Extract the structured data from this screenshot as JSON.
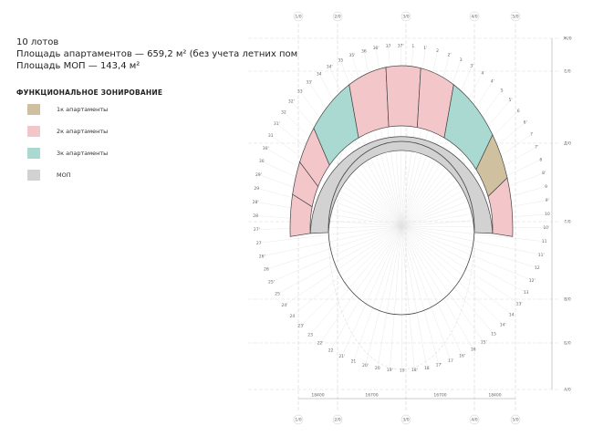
{
  "header": {
    "lots": "10 лотов",
    "apartments_area": "Площадь апартаментов — 659,2 м² (без учета летних пом",
    "common_area": "Площадь МОП — 143,4 м²"
  },
  "legend": {
    "title": "ФУНКЦИОНАЛЬНОЕ ЗОНИРОВАНИЕ",
    "items": [
      {
        "label": "1к апартаменты",
        "color": "#cfc19f"
      },
      {
        "label": "2к апартаменты",
        "color": "#f3c6ca"
      },
      {
        "label": "3к апартаменты",
        "color": "#a9d9d1"
      },
      {
        "label": "МОП",
        "color": "#d2d2d2"
      }
    ]
  },
  "plan": {
    "column_axes": [
      "1/0",
      "2/0",
      "3/0",
      "4/0",
      "5/0"
    ],
    "row_axes": [
      "Ж/0",
      "Е/0",
      "Д/0",
      "Г/0",
      "В/0",
      "Б/0",
      "А/0"
    ],
    "dimensions": [
      "18400",
      "16700",
      "16700",
      "18400"
    ],
    "radial_labels": [
      "1",
      "1'",
      "2",
      "2'",
      "3",
      "3'",
      "4",
      "4'",
      "5",
      "5'",
      "6",
      "6'",
      "7",
      "7'",
      "8",
      "8'",
      "9",
      "9'",
      "10",
      "10'",
      "11",
      "11'",
      "12",
      "12'",
      "13",
      "13'",
      "14",
      "14'",
      "15",
      "15'",
      "16",
      "16'",
      "17",
      "17'",
      "18",
      "18'",
      "19",
      "19'",
      "20",
      "20'",
      "21",
      "21'",
      "22",
      "22'",
      "23",
      "23'",
      "24",
      "24'",
      "25",
      "25'",
      "26",
      "26'",
      "27",
      "27'",
      "28",
      "28'",
      "29",
      "29'",
      "30",
      "30'",
      "31",
      "31'",
      "32",
      "32'",
      "33",
      "33'",
      "34",
      "34'",
      "35",
      "35'",
      "36",
      "36'",
      "37",
      "37'"
    ]
  }
}
